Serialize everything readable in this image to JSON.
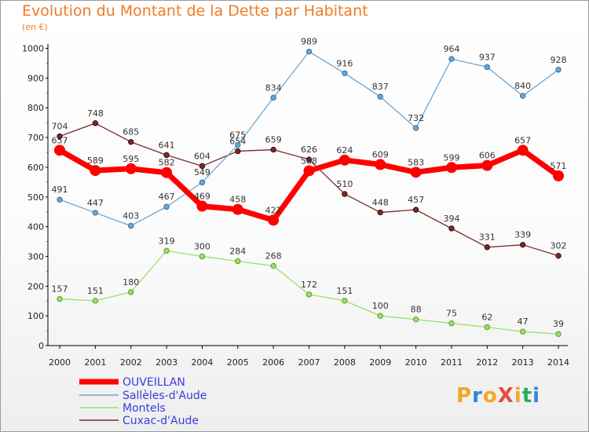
{
  "title": "Evolution du Montant de la Dette par Habitant",
  "unit_label": "(en €)",
  "logo": {
    "text": "ProXiti",
    "colors": [
      "#f5a623",
      "#2e86de",
      "#f5a623",
      "#e74c3c",
      "#f5a623",
      "#27ae60",
      "#2e86de"
    ]
  },
  "chart_data": {
    "type": "line",
    "title": "Evolution du Montant de la Dette par Habitant",
    "ylabel": "(en €)",
    "x": [
      "2000",
      "2001",
      "2002",
      "2003",
      "2004",
      "2005",
      "2006",
      "2007",
      "2008",
      "2009",
      "2010",
      "2011",
      "2012",
      "2013",
      "2014"
    ],
    "ylim": [
      0,
      1000
    ],
    "yticks": [
      0,
      100,
      200,
      300,
      400,
      500,
      600,
      700,
      800,
      900,
      1000
    ],
    "grid": false,
    "legend_position": "bottom-left",
    "series": [
      {
        "name": "Cuxac-d'Aude",
        "color": "#7a2a2a",
        "values": [
          704,
          748,
          685,
          641,
          604,
          654,
          659,
          626,
          510,
          448,
          457,
          394,
          331,
          339,
          302
        ]
      },
      {
        "name": "Montels",
        "color": "#99e06a",
        "values": [
          157,
          151,
          180,
          319,
          300,
          284,
          268,
          172,
          151,
          100,
          88,
          75,
          62,
          47,
          39
        ]
      },
      {
        "name": "Sallèles-d'Aude",
        "color": "#6ea6d0",
        "values": [
          491,
          447,
          403,
          467,
          549,
          675,
          834,
          989,
          916,
          837,
          732,
          964,
          937,
          840,
          928
        ]
      },
      {
        "name": "OUVEILLAN",
        "color": "#ff0000",
        "values": [
          657,
          589,
          595,
          582,
          469,
          458,
          422,
          588,
          624,
          609,
          583,
          599,
          606,
          657,
          571
        ]
      }
    ],
    "legend_order": [
      "OUVEILLAN",
      "Sallèles-d'Aude",
      "Montels",
      "Cuxac-d'Aude"
    ]
  }
}
